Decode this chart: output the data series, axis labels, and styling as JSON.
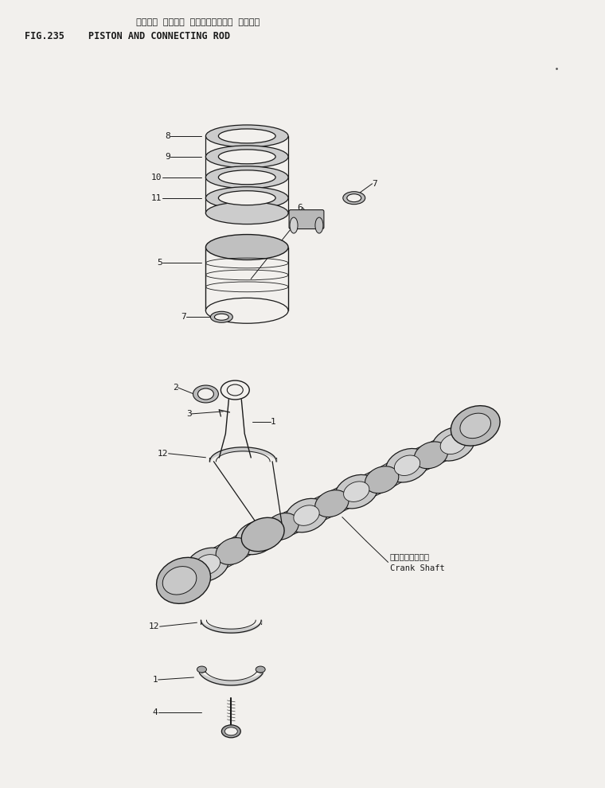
{
  "fig_width": 7.6,
  "fig_height": 9.9,
  "dpi": 100,
  "bg_color": "#f2f0ed",
  "text_color": "#1a1a1a",
  "line_color": "#1a1a1a",
  "title_japanese": "ピストン オラビス コネクティング・ ロッド・",
  "title_fig": "FIG.235",
  "title_english": "PISTON AND CONNECTING ROD",
  "crankshaft_jp": "クランクシャフト",
  "crankshaft_en": "Crank Shaft"
}
